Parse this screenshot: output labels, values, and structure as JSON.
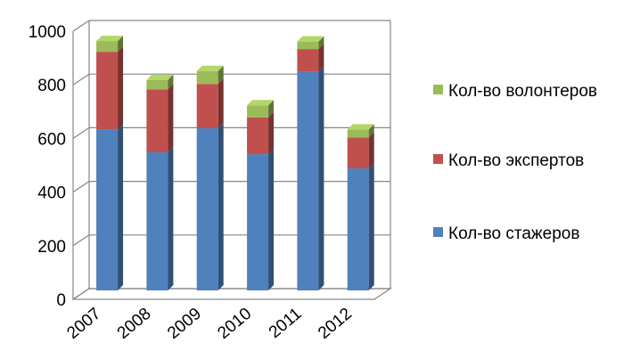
{
  "chart_data": {
    "type": "bar",
    "stacked": true,
    "three_d": true,
    "categories": [
      "2007",
      "2008",
      "2009",
      "2010",
      "2011",
      "2012"
    ],
    "series": [
      {
        "name": "Кол-во стажеров",
        "color": "#4F81BD",
        "values": [
          600,
          515,
          605,
          508,
          815,
          455
        ]
      },
      {
        "name": "Кол-во экспертов",
        "color": "#C0504D",
        "values": [
          290,
          235,
          165,
          137,
          85,
          115
        ]
      },
      {
        "name": "Кол-во волонтеров",
        "color": "#9BBB59",
        "values": [
          40,
          35,
          48,
          45,
          28,
          30
        ]
      }
    ],
    "ylim": [
      0,
      1000
    ],
    "yticks": [
      "0",
      "200",
      "400",
      "600",
      "800",
      "1000"
    ],
    "grid": true,
    "legend_position": "right"
  }
}
